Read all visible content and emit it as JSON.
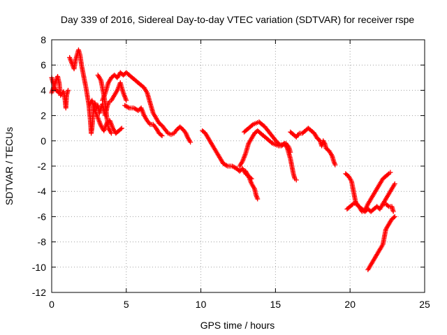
{
  "chart_data": {
    "type": "scatter",
    "title": "Day 339 of 2016, Sidereal Day-to-day VTEC variation (SDTVAR) for receiver rspe",
    "xlabel": "GPS time / hours",
    "ylabel": "SDTVAR / TECUs",
    "xlim": [
      0,
      25
    ],
    "ylim": [
      -12,
      8
    ],
    "xticks": [
      "0",
      "5",
      "10",
      "15",
      "20",
      "25"
    ],
    "yticks": [
      "-12",
      "-10",
      "-8",
      "-6",
      "-4",
      "-2",
      "0",
      "2",
      "4",
      "6",
      "8"
    ],
    "grid": true,
    "marker": "+",
    "color": "#ff0000",
    "series": [
      {
        "name": "s1",
        "points": [
          [
            0,
            3.8
          ],
          [
            0.3,
            4.8
          ],
          [
            0.4,
            5.1
          ],
          [
            0.5,
            4.6
          ],
          [
            0.6,
            3.6
          ],
          [
            0.8,
            3.9
          ],
          [
            0.9,
            3.2
          ],
          [
            0.95,
            2.6
          ],
          [
            1.0,
            3.6
          ],
          [
            1.1,
            4.0
          ]
        ]
      },
      {
        "name": "s2",
        "points": [
          [
            0.0,
            5.0
          ],
          [
            0.2,
            4.2
          ],
          [
            0.3,
            4.0
          ],
          [
            0.5,
            3.8
          ]
        ]
      },
      {
        "name": "s3",
        "points": [
          [
            1.2,
            6.6
          ],
          [
            1.4,
            6.0
          ],
          [
            1.5,
            5.7
          ],
          [
            1.6,
            6.4
          ],
          [
            1.8,
            7.2
          ],
          [
            1.9,
            6.8
          ],
          [
            2.0,
            6.0
          ],
          [
            2.1,
            5.4
          ],
          [
            2.2,
            4.8
          ],
          [
            2.3,
            4.2
          ],
          [
            2.4,
            3.5
          ],
          [
            2.5,
            2.8
          ],
          [
            2.6,
            1.5
          ],
          [
            2.65,
            0.6
          ],
          [
            2.7,
            1.0
          ],
          [
            2.8,
            2.4
          ],
          [
            2.9,
            3.0
          ],
          [
            3.0,
            2.6
          ],
          [
            3.1,
            2.8
          ],
          [
            3.2,
            2.2
          ],
          [
            3.3,
            2.6
          ],
          [
            3.4,
            2.9
          ],
          [
            3.5,
            2.4
          ],
          [
            3.6,
            2.0
          ],
          [
            3.7,
            2.6
          ],
          [
            3.8,
            3.0
          ],
          [
            3.9,
            3.1
          ],
          [
            4.0,
            3.2
          ],
          [
            4.2,
            3.6
          ],
          [
            4.4,
            4.0
          ],
          [
            4.6,
            4.6
          ],
          [
            4.8,
            3.8
          ],
          [
            5.0,
            3.2
          ]
        ]
      },
      {
        "name": "s4",
        "points": [
          [
            2.5,
            2.8
          ],
          [
            2.7,
            3.2
          ],
          [
            2.9,
            2.4
          ],
          [
            3.1,
            1.8
          ],
          [
            3.3,
            1.2
          ],
          [
            3.5,
            0.8
          ],
          [
            3.7,
            1.4
          ],
          [
            3.9,
            1.6
          ],
          [
            4.1,
            1.0
          ],
          [
            4.3,
            0.6
          ],
          [
            4.5,
            0.8
          ],
          [
            4.7,
            1.0
          ]
        ]
      },
      {
        "name": "s5",
        "points": [
          [
            3.1,
            5.2
          ],
          [
            3.3,
            4.8
          ],
          [
            3.4,
            4.2
          ],
          [
            3.5,
            3.6
          ],
          [
            3.6,
            2.8
          ],
          [
            3.7,
            1.8
          ],
          [
            3.8,
            1.0
          ],
          [
            3.9,
            0.8
          ],
          [
            4.0,
            0.6
          ]
        ]
      },
      {
        "name": "s6",
        "points": [
          [
            3.4,
            3.2
          ],
          [
            3.6,
            3.8
          ],
          [
            3.8,
            4.6
          ],
          [
            4.0,
            5.0
          ],
          [
            4.2,
            5.2
          ],
          [
            4.4,
            5.0
          ],
          [
            4.6,
            5.4
          ],
          [
            4.8,
            5.2
          ],
          [
            5.0,
            5.4
          ],
          [
            5.2,
            5.2
          ],
          [
            5.4,
            5.0
          ],
          [
            5.6,
            4.8
          ],
          [
            5.8,
            4.6
          ],
          [
            6.0,
            4.4
          ],
          [
            6.2,
            4.2
          ],
          [
            6.4,
            3.8
          ],
          [
            6.5,
            3.4
          ],
          [
            6.6,
            3.0
          ],
          [
            6.7,
            2.6
          ],
          [
            6.8,
            2.2
          ],
          [
            7.0,
            1.8
          ],
          [
            7.2,
            1.4
          ],
          [
            7.4,
            1.2
          ],
          [
            7.6,
            0.9
          ],
          [
            7.8,
            0.6
          ],
          [
            8.0,
            0.5
          ],
          [
            8.2,
            0.6
          ],
          [
            8.4,
            0.9
          ],
          [
            8.6,
            1.1
          ],
          [
            8.8,
            0.9
          ],
          [
            9.0,
            0.6
          ],
          [
            9.1,
            0.3
          ],
          [
            9.2,
            0.1
          ],
          [
            9.3,
            -0.1
          ]
        ]
      },
      {
        "name": "s7",
        "points": [
          [
            4.9,
            2.8
          ],
          [
            5.2,
            2.6
          ],
          [
            5.5,
            2.6
          ],
          [
            5.8,
            2.4
          ],
          [
            6.0,
            2.6
          ],
          [
            6.2,
            2.0
          ],
          [
            6.4,
            1.6
          ],
          [
            6.6,
            1.3
          ],
          [
            6.8,
            1.3
          ],
          [
            7.0,
            1.0
          ],
          [
            7.2,
            0.6
          ],
          [
            7.4,
            0.4
          ]
        ]
      },
      {
        "name": "s8",
        "points": [
          [
            10.1,
            0.8
          ],
          [
            10.3,
            0.6
          ],
          [
            10.5,
            0.2
          ],
          [
            10.7,
            -0.2
          ],
          [
            10.9,
            -0.6
          ],
          [
            11.1,
            -1.0
          ],
          [
            11.3,
            -1.4
          ],
          [
            11.5,
            -1.8
          ],
          [
            11.8,
            -2.0
          ],
          [
            12.1,
            -2.0
          ],
          [
            12.4,
            -2.2
          ],
          [
            12.6,
            -2.4
          ],
          [
            12.8,
            -2.2
          ],
          [
            13.0,
            -2.6
          ],
          [
            13.2,
            -2.8
          ],
          [
            13.4,
            -3.0
          ]
        ]
      },
      {
        "name": "s9",
        "points": [
          [
            12.6,
            -2.0
          ],
          [
            12.8,
            -1.6
          ],
          [
            13.0,
            -1.0
          ],
          [
            13.2,
            -0.2
          ],
          [
            13.4,
            0.2
          ],
          [
            13.6,
            0.6
          ],
          [
            13.8,
            0.8
          ],
          [
            14.0,
            0.6
          ],
          [
            14.2,
            0.4
          ],
          [
            14.4,
            0.2
          ],
          [
            14.6,
            0.0
          ],
          [
            14.8,
            -0.2
          ],
          [
            15.0,
            -0.3
          ],
          [
            15.2,
            -0.4
          ],
          [
            15.4,
            -0.4
          ],
          [
            15.6,
            -0.2
          ],
          [
            15.8,
            -0.6
          ],
          [
            16.0,
            -1.4
          ],
          [
            16.1,
            -2.0
          ],
          [
            16.2,
            -2.6
          ],
          [
            16.3,
            -3.0
          ],
          [
            16.4,
            -3.1
          ]
        ]
      },
      {
        "name": "s10",
        "points": [
          [
            13.0,
            -2.4
          ],
          [
            13.2,
            -2.8
          ],
          [
            13.4,
            -3.4
          ],
          [
            13.6,
            -3.8
          ],
          [
            13.7,
            -4.3
          ],
          [
            13.8,
            -4.6
          ]
        ]
      },
      {
        "name": "s11",
        "points": [
          [
            12.9,
            0.7
          ],
          [
            13.1,
            0.9
          ],
          [
            13.3,
            1.1
          ],
          [
            13.5,
            1.3
          ],
          [
            13.7,
            1.4
          ],
          [
            13.9,
            1.5
          ],
          [
            14.1,
            1.3
          ],
          [
            14.3,
            1.1
          ],
          [
            14.5,
            0.8
          ],
          [
            14.7,
            0.5
          ],
          [
            14.9,
            0.2
          ],
          [
            15.1,
            -0.1
          ],
          [
            15.3,
            -0.3
          ],
          [
            15.5,
            -0.3
          ],
          [
            15.7,
            -0.2
          ],
          [
            15.9,
            -0.5
          ],
          [
            16.0,
            -0.9
          ]
        ]
      },
      {
        "name": "s12",
        "points": [
          [
            16.0,
            0.7
          ],
          [
            16.2,
            0.5
          ],
          [
            16.4,
            0.3
          ],
          [
            16.6,
            0.6
          ],
          [
            16.8,
            0.6
          ],
          [
            17.0,
            0.8
          ],
          [
            17.2,
            1.0
          ],
          [
            17.4,
            0.8
          ],
          [
            17.6,
            0.6
          ],
          [
            17.8,
            0.2
          ],
          [
            18.0,
            0.0
          ],
          [
            18.1,
            -0.4
          ],
          [
            18.2,
            0.0
          ],
          [
            18.3,
            -0.2
          ],
          [
            18.4,
            -0.6
          ],
          [
            18.6,
            -0.8
          ],
          [
            18.8,
            -1.2
          ],
          [
            18.9,
            -1.6
          ],
          [
            19.0,
            -1.9
          ]
        ]
      },
      {
        "name": "s13",
        "points": [
          [
            19.7,
            -2.6
          ],
          [
            19.9,
            -2.8
          ],
          [
            20.1,
            -3.2
          ],
          [
            20.2,
            -3.8
          ],
          [
            20.3,
            -4.4
          ],
          [
            20.4,
            -5.0
          ],
          [
            20.6,
            -5.2
          ],
          [
            20.8,
            -5.4
          ],
          [
            21.0,
            -5.6
          ],
          [
            21.2,
            -5.4
          ],
          [
            21.4,
            -5.6
          ],
          [
            21.6,
            -5.4
          ],
          [
            21.8,
            -5.2
          ],
          [
            22.0,
            -5.4
          ],
          [
            22.2,
            -5.0
          ],
          [
            22.4,
            -5.0
          ],
          [
            22.6,
            -5.2
          ],
          [
            22.8,
            -5.2
          ],
          [
            22.9,
            -5.6
          ]
        ]
      },
      {
        "name": "s14",
        "points": [
          [
            19.8,
            -5.4
          ],
          [
            20.0,
            -5.2
          ],
          [
            20.2,
            -5.0
          ],
          [
            20.4,
            -4.9
          ],
          [
            20.6,
            -5.2
          ],
          [
            20.8,
            -5.6
          ],
          [
            21.0,
            -5.5
          ],
          [
            21.2,
            -5.0
          ],
          [
            21.4,
            -4.6
          ],
          [
            21.6,
            -4.2
          ],
          [
            21.8,
            -3.8
          ],
          [
            22.0,
            -3.4
          ],
          [
            22.2,
            -3.0
          ],
          [
            22.4,
            -2.8
          ],
          [
            22.6,
            -2.6
          ],
          [
            22.7,
            -2.5
          ]
        ]
      },
      {
        "name": "s15",
        "points": [
          [
            21.2,
            -10.2
          ],
          [
            21.4,
            -9.8
          ],
          [
            21.6,
            -9.4
          ],
          [
            21.8,
            -9.0
          ],
          [
            22.0,
            -8.6
          ],
          [
            22.2,
            -8.2
          ],
          [
            22.3,
            -7.6
          ],
          [
            22.4,
            -7.0
          ],
          [
            22.6,
            -6.6
          ],
          [
            22.8,
            -6.2
          ],
          [
            23.0,
            -6.0
          ]
        ]
      },
      {
        "name": "s16",
        "points": [
          [
            22.2,
            -5.0
          ],
          [
            22.4,
            -4.6
          ],
          [
            22.6,
            -4.2
          ],
          [
            22.8,
            -3.8
          ],
          [
            23.0,
            -3.4
          ]
        ]
      }
    ]
  }
}
